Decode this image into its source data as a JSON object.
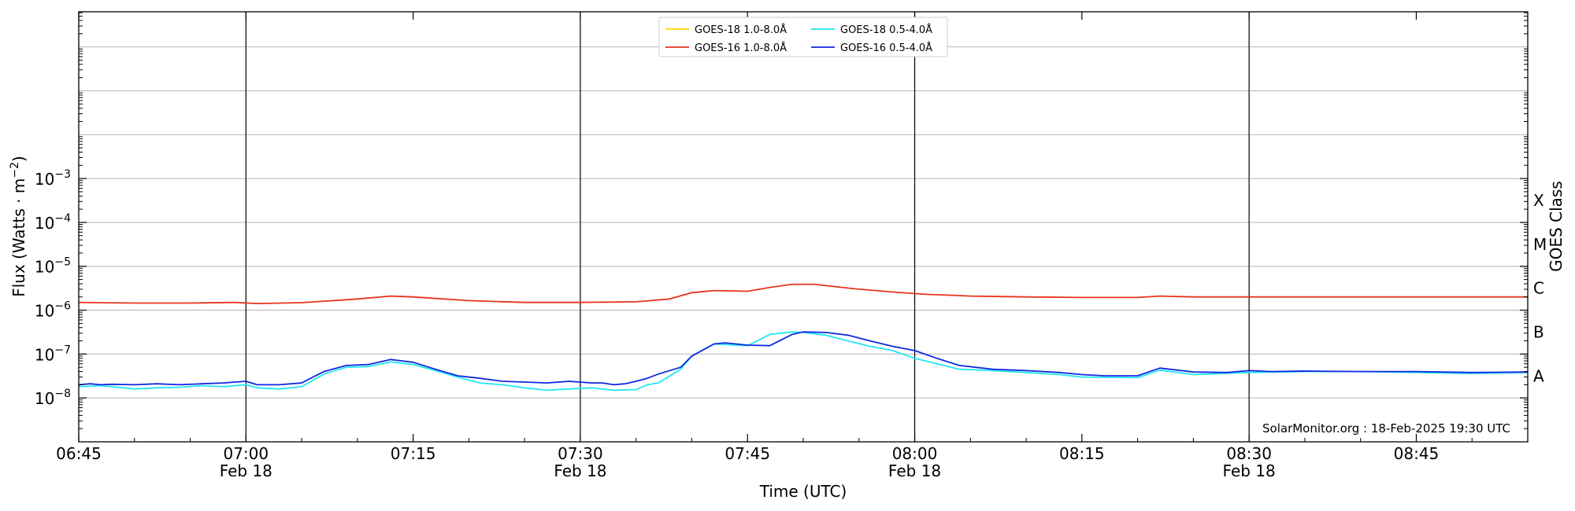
{
  "chart_data": {
    "type": "line",
    "xlabel": "Time (UTC)",
    "ylabel_main": "Flux (Watts · m",
    "ylabel_sup": "−2",
    "ylabel_close": ")",
    "right_label": "GOES Class",
    "credit": "SolarMonitor.org : 18-Feb-2025 19:30 UTC",
    "x_unit": "minutes after 06:45",
    "xlim": [
      0,
      130
    ],
    "ylim_log10": [
      -9,
      0.8
    ],
    "y_scale": "log",
    "grid": "horizontal",
    "legend_placement": "top-center",
    "x_ticks": [
      {
        "pos": 0,
        "label": "06:45",
        "sub": ""
      },
      {
        "pos": 15,
        "label": "07:00",
        "sub": "Feb 18"
      },
      {
        "pos": 30,
        "label": "07:15",
        "sub": ""
      },
      {
        "pos": 45,
        "label": "07:30",
        "sub": "Feb 18"
      },
      {
        "pos": 60,
        "label": "07:45",
        "sub": ""
      },
      {
        "pos": 75,
        "label": "08:00",
        "sub": "Feb 18"
      },
      {
        "pos": 90,
        "label": "08:15",
        "sub": ""
      },
      {
        "pos": 105,
        "label": "08:30",
        "sub": "Feb 18"
      },
      {
        "pos": 120,
        "label": "08:45",
        "sub": ""
      }
    ],
    "x_vlines": [
      15,
      45,
      75,
      105
    ],
    "y_ticks": [
      {
        "exp": -8,
        "base": "10",
        "sup": "−8"
      },
      {
        "exp": -7,
        "base": "10",
        "sup": "−7"
      },
      {
        "exp": -6,
        "base": "10",
        "sup": "−6"
      },
      {
        "exp": -5,
        "base": "10",
        "sup": "−5"
      },
      {
        "exp": -4,
        "base": "10",
        "sup": "−4"
      },
      {
        "exp": -3,
        "base": "10",
        "sup": "−3"
      }
    ],
    "goes_classes": [
      {
        "label": "A",
        "exp": -8
      },
      {
        "label": "B",
        "exp": -7
      },
      {
        "label": "C",
        "exp": -6
      },
      {
        "label": "M",
        "exp": -5
      },
      {
        "label": "X",
        "exp": -4
      }
    ],
    "series": [
      {
        "name": "GOES-18 1.0-8.0Å",
        "color": "#ffd700",
        "x": [
          0,
          130
        ],
        "y": [
          1.5e-06,
          2e-06
        ],
        "visible_in_plot": false
      },
      {
        "name": "GOES-16 1.0-8.0Å",
        "color": "#e8341b",
        "x": [
          0,
          5,
          10,
          14,
          16,
          20,
          25,
          28,
          30,
          35,
          40,
          45,
          50,
          53,
          55,
          57,
          60,
          62,
          64,
          66,
          68,
          70,
          73,
          76,
          78,
          80,
          85,
          90,
          95,
          97,
          100,
          105,
          110,
          120,
          130
        ],
        "y": [
          1.5e-06,
          1.45e-06,
          1.45e-06,
          1.5e-06,
          1.42e-06,
          1.48e-06,
          1.8e-06,
          2.1e-06,
          2e-06,
          1.65e-06,
          1.5e-06,
          1.5e-06,
          1.55e-06,
          1.8e-06,
          2.5e-06,
          2.8e-06,
          2.7e-06,
          3.3e-06,
          3.9e-06,
          3.9e-06,
          3.4e-06,
          3e-06,
          2.6e-06,
          2.3e-06,
          2.2e-06,
          2.1e-06,
          2e-06,
          1.95e-06,
          1.95e-06,
          2.1e-06,
          2e-06,
          2e-06,
          2e-06,
          2e-06,
          2e-06
        ]
      },
      {
        "name": "GOES-18 0.5-4.0Å",
        "color": "#22e6f2",
        "x": [
          0,
          2,
          4,
          5,
          7,
          9,
          11,
          13,
          15,
          16,
          18,
          20,
          22,
          24,
          26,
          28,
          30,
          32,
          34,
          36,
          38,
          40,
          42,
          44,
          46,
          47,
          48,
          50,
          51,
          52,
          54,
          55,
          57,
          60,
          62,
          64,
          65,
          67,
          69,
          71,
          73,
          75,
          77,
          79,
          82,
          85,
          88,
          90,
          95,
          97,
          100,
          105,
          110,
          115,
          120,
          125,
          130
        ],
        "y": [
          1.8e-08,
          1.9e-08,
          1.7e-08,
          1.6e-08,
          1.7e-08,
          1.75e-08,
          1.9e-08,
          1.8e-08,
          2e-08,
          1.7e-08,
          1.6e-08,
          1.8e-08,
          3.5e-08,
          5e-08,
          5.2e-08,
          6.6e-08,
          5.8e-08,
          4.2e-08,
          3e-08,
          2.2e-08,
          2e-08,
          1.7e-08,
          1.5e-08,
          1.6e-08,
          1.7e-08,
          1.6e-08,
          1.5e-08,
          1.55e-08,
          2e-08,
          2.2e-08,
          4.5e-08,
          9e-08,
          1.7e-07,
          1.55e-07,
          2.8e-07,
          3.2e-07,
          3.1e-07,
          2.7e-07,
          2e-07,
          1.5e-07,
          1.2e-07,
          8e-08,
          6e-08,
          4.5e-08,
          4.2e-08,
          3.8e-08,
          3.4e-08,
          3e-08,
          2.9e-08,
          4.3e-08,
          3.4e-08,
          3.8e-08,
          4e-08,
          4e-08,
          3.8e-08,
          3.6e-08,
          3.8e-08
        ]
      },
      {
        "name": "GOES-16 0.5-4.0Å",
        "color": "#1128e0",
        "x": [
          0,
          1,
          2,
          3,
          5,
          7,
          9,
          11,
          13,
          14,
          15,
          16,
          18,
          20,
          22,
          24,
          26,
          28,
          30,
          32,
          34,
          36,
          38,
          40,
          42,
          44,
          46,
          47,
          48,
          49,
          50,
          51,
          52,
          54,
          55,
          57,
          58,
          60,
          62,
          64,
          65,
          67,
          69,
          71,
          73,
          75,
          77,
          79,
          82,
          85,
          88,
          90,
          92,
          95,
          97,
          100,
          103,
          105,
          107,
          110,
          115,
          120,
          125,
          130
        ],
        "y": [
          2e-08,
          2.1e-08,
          2e-08,
          2.05e-08,
          2e-08,
          2.1e-08,
          2e-08,
          2.1e-08,
          2.2e-08,
          2.3e-08,
          2.4e-08,
          2e-08,
          2e-08,
          2.2e-08,
          4e-08,
          5.5e-08,
          5.8e-08,
          7.5e-08,
          6.5e-08,
          4.5e-08,
          3.2e-08,
          2.8e-08,
          2.4e-08,
          2.3e-08,
          2.2e-08,
          2.4e-08,
          2.2e-08,
          2.2e-08,
          2e-08,
          2.1e-08,
          2.4e-08,
          2.8e-08,
          3.5e-08,
          5e-08,
          9e-08,
          1.7e-07,
          1.8e-07,
          1.6e-07,
          1.55e-07,
          2.8e-07,
          3.2e-07,
          3.1e-07,
          2.7e-07,
          2e-07,
          1.5e-07,
          1.2e-07,
          8e-08,
          5.5e-08,
          4.5e-08,
          4.2e-08,
          3.8e-08,
          3.4e-08,
          3.2e-08,
          3.2e-08,
          4.8e-08,
          3.9e-08,
          3.8e-08,
          4.2e-08,
          4e-08,
          4.1e-08,
          4e-08,
          4e-08,
          3.8e-08,
          3.9e-08
        ]
      }
    ]
  }
}
